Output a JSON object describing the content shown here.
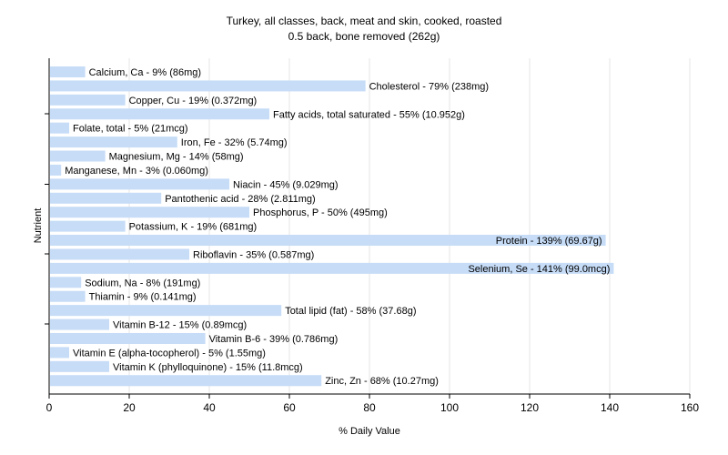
{
  "chart_data": {
    "type": "bar",
    "orientation": "horizontal",
    "title": "Turkey, all classes, back, meat and skin, cooked, roasted",
    "subtitle": "0.5 back, bone removed (262g)",
    "xlabel": "% Daily Value",
    "ylabel": "Nutrient",
    "xlim": [
      0,
      160
    ],
    "xticks": [
      0,
      20,
      40,
      60,
      80,
      100,
      120,
      140,
      160
    ],
    "grid": true,
    "bar_color": "#c6dcf7",
    "categories": [
      "Calcium, Ca",
      "Cholesterol",
      "Copper, Cu",
      "Fatty acids, total saturated",
      "Folate, total",
      "Iron, Fe",
      "Magnesium, Mg",
      "Manganese, Mn",
      "Niacin",
      "Pantothenic acid",
      "Phosphorus, P",
      "Potassium, K",
      "Protein",
      "Riboflavin",
      "Selenium, Se",
      "Sodium, Na",
      "Thiamin",
      "Total lipid (fat)",
      "Vitamin B-12",
      "Vitamin B-6",
      "Vitamin E (alpha-tocopherol)",
      "Vitamin K (phylloquinone)",
      "Zinc, Zn"
    ],
    "values": [
      9,
      79,
      19,
      55,
      5,
      32,
      14,
      3,
      45,
      28,
      50,
      19,
      139,
      35,
      141,
      8,
      9,
      58,
      15,
      39,
      5,
      15,
      68
    ],
    "labels": [
      "Calcium, Ca - 9% (86mg)",
      "Cholesterol - 79% (238mg)",
      "Copper, Cu - 19% (0.372mg)",
      "Fatty acids, total saturated - 55% (10.952g)",
      "Folate, total - 5% (21mcg)",
      "Iron, Fe - 32% (5.74mg)",
      "Magnesium, Mg - 14% (58mg)",
      "Manganese, Mn - 3% (0.060mg)",
      "Niacin - 45% (9.029mg)",
      "Pantothenic acid - 28% (2.811mg)",
      "Phosphorus, P - 50% (495mg)",
      "Potassium, K - 19% (681mg)",
      "Protein - 139% (69.67g)",
      "Riboflavin - 35% (0.587mg)",
      "Selenium, Se - 141% (99.0mcg)",
      "Sodium, Na - 8% (191mg)",
      "Thiamin - 9% (0.141mg)",
      "Total lipid (fat) - 58% (37.68g)",
      "Vitamin B-12 - 15% (0.89mcg)",
      "Vitamin B-6 - 39% (0.786mg)",
      "Vitamin E (alpha-tocopherol) - 5% (1.55mg)",
      "Vitamin K (phylloquinone) - 15% (11.8mcg)",
      "Zinc, Zn - 68% (10.27mg)"
    ]
  }
}
